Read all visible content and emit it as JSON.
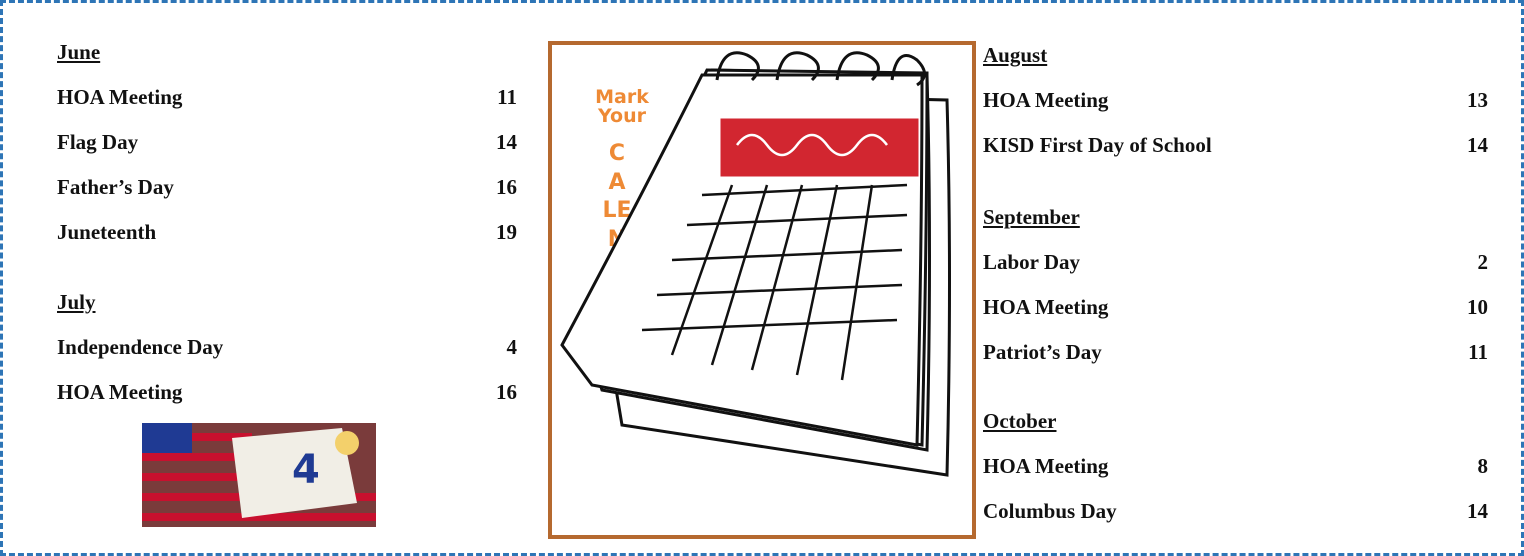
{
  "left": {
    "sections": [
      {
        "month": "June",
        "events": [
          {
            "name": "HOA Meeting",
            "day": 11
          },
          {
            "name": "Flag Day",
            "day": 14
          },
          {
            "name": "Father’s Day",
            "day": 16
          },
          {
            "name": "Juneteenth",
            "day": 19
          }
        ]
      },
      {
        "month": "July",
        "events": [
          {
            "name": "Independence Day",
            "day": 4
          },
          {
            "name": "HOA Meeting",
            "day": 16
          }
        ]
      }
    ]
  },
  "center": {
    "line1": "Mark",
    "line2": "Your",
    "word": "CALENDARS"
  },
  "right": {
    "sections": [
      {
        "month": "August",
        "events": [
          {
            "name": "HOA Meeting",
            "day": 13
          },
          {
            "name": "KISD First Day of School",
            "day": 14
          }
        ]
      },
      {
        "month": "September",
        "events": [
          {
            "name": "Labor Day",
            "day": 2
          },
          {
            "name": "HOA Meeting",
            "day": 10
          },
          {
            "name": "Patriot’s Day",
            "day": 11
          }
        ]
      },
      {
        "month": "October",
        "events": [
          {
            "name": "HOA Meeting",
            "day": 8
          },
          {
            "name": "Columbus Day",
            "day": 14
          }
        ]
      }
    ]
  }
}
